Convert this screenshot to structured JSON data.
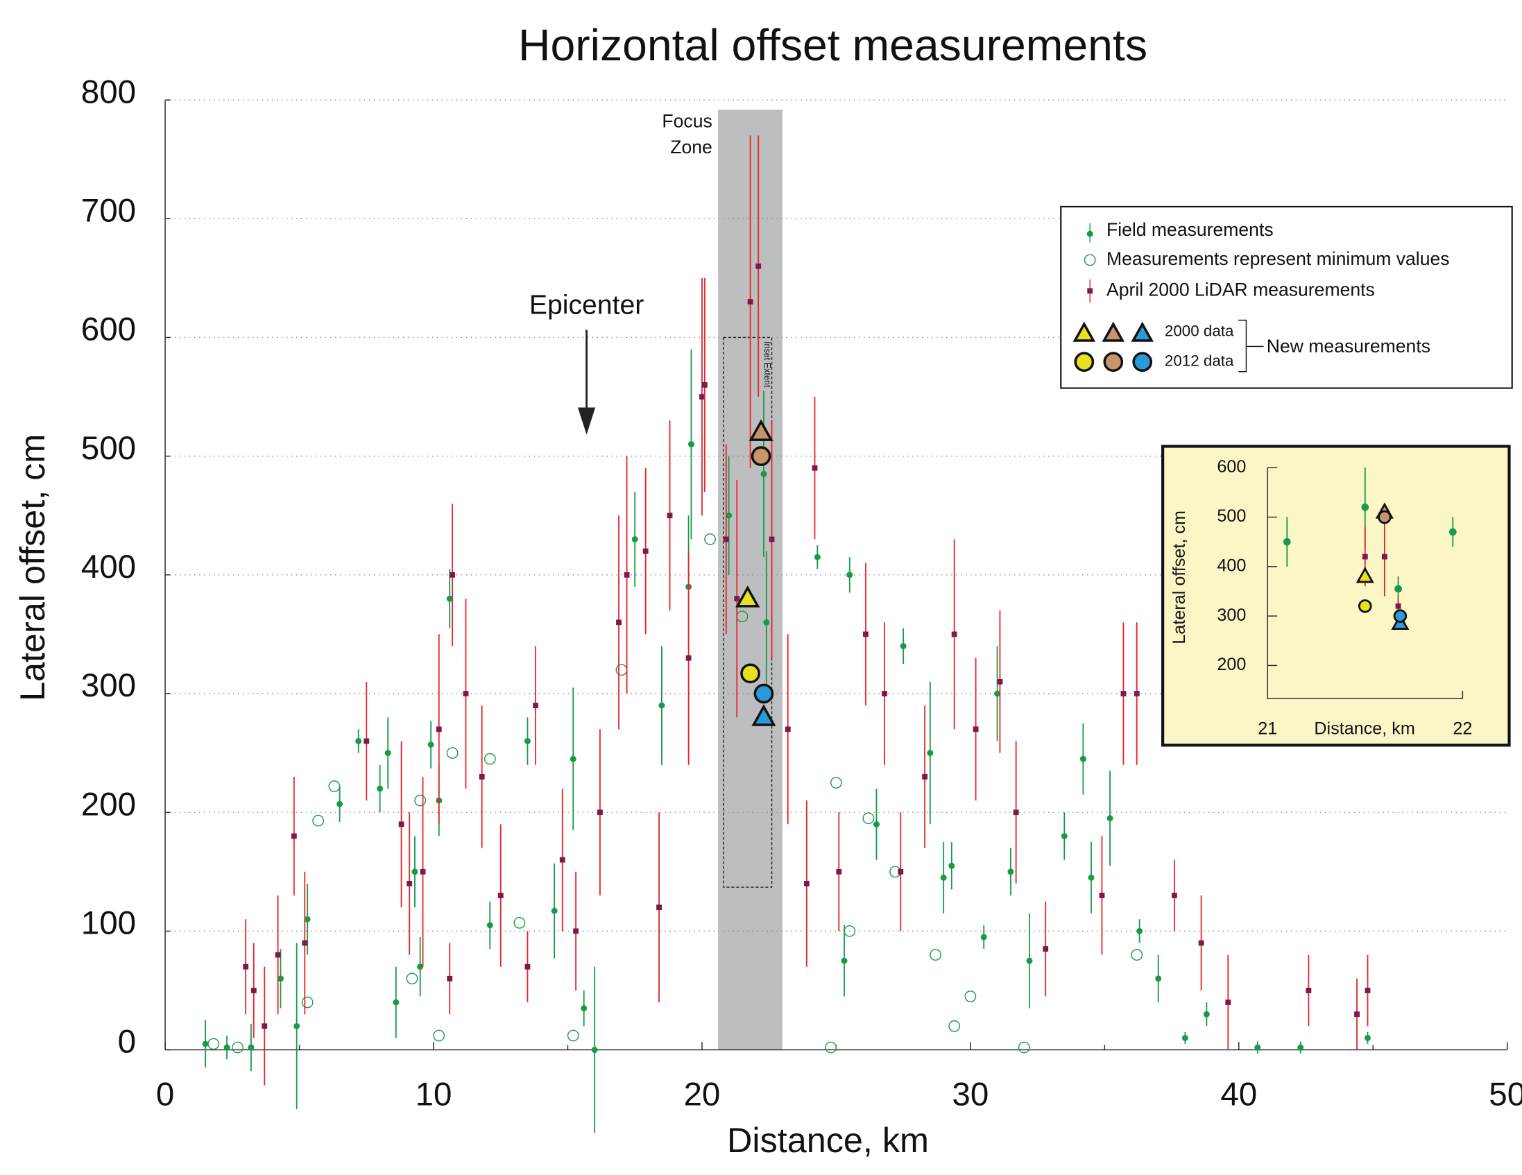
{
  "chart_data": {
    "type": "scatter",
    "title": "Horizontal offset measurements",
    "x_label": "Distance, km",
    "y_label": "Lateral offset, cm",
    "xlim": [
      0,
      50
    ],
    "xticks": [
      0,
      10,
      20,
      30,
      40,
      50
    ],
    "ylim": [
      0,
      800
    ],
    "yticks": [
      0,
      100,
      200,
      300,
      400,
      500,
      600,
      700,
      800
    ],
    "grid": true,
    "focus_zone": {
      "label": "Focus Zone",
      "x": [
        20.6,
        23.0
      ]
    },
    "inset_extent": {
      "label": "Inset Extent",
      "x": [
        20.8,
        22.6
      ],
      "y": [
        137,
        600
      ]
    },
    "epicenter": {
      "label": "Epicenter",
      "x": 15.7
    },
    "series": [
      {
        "name": "Field measurements",
        "marker": "dot",
        "color": "#1a9a48",
        "error_color": "#1a9a48",
        "x": [
          1.5,
          2.3,
          3.2,
          4.3,
          4.9,
          5.3,
          6.5,
          7.2,
          8,
          8.3,
          8.6,
          9.3,
          9.5,
          9.9,
          10.2,
          10.6,
          12.1,
          13.5,
          14.5,
          15.2,
          15.6,
          16,
          17.5,
          18.5,
          19.5,
          19.6,
          21,
          22.3,
          22.4,
          24.3,
          25.3,
          25.5,
          26.5,
          27.5,
          28.5,
          29,
          29.3,
          30.5,
          31,
          31.5,
          32.2,
          33.5,
          34.2,
          34.5,
          35.2,
          36.3,
          37,
          38,
          38.8,
          40.7,
          42.3,
          44.8
        ],
        "values": [
          5,
          2,
          2,
          60,
          20,
          110,
          207,
          260,
          220,
          250,
          40,
          150,
          70,
          257,
          210,
          380,
          105,
          260,
          117,
          245,
          35,
          0,
          430,
          290,
          390,
          510,
          450,
          485,
          360,
          415,
          75,
          400,
          190,
          340,
          250,
          145,
          155,
          95,
          300,
          150,
          75,
          180,
          245,
          145,
          195,
          100,
          60,
          10,
          30,
          2,
          2,
          10
        ],
        "errors": [
          20,
          10,
          20,
          25,
          70,
          30,
          15,
          10,
          20,
          30,
          30,
          30,
          25,
          20,
          30,
          25,
          20,
          20,
          40,
          60,
          15,
          70,
          40,
          50,
          60,
          80,
          50,
          70,
          60,
          10,
          30,
          15,
          30,
          15,
          60,
          30,
          20,
          10,
          40,
          20,
          40,
          20,
          30,
          30,
          40,
          10,
          20,
          5,
          10,
          5,
          5,
          5
        ]
      },
      {
        "name": "Measurements  represent minimum values",
        "marker": "open",
        "color": "#1a9a48",
        "x": [
          1.8,
          2.7,
          5.3,
          5.7,
          6.3,
          9.2,
          9.5,
          10.2,
          10.7,
          12.1,
          13.2,
          15.2,
          17,
          20.3,
          21.5,
          24.8,
          25,
          25.5,
          26.2,
          27.2,
          28.7,
          29.4,
          30,
          32,
          36.2
        ],
        "values": [
          5,
          2,
          40,
          193,
          222,
          60,
          210,
          12,
          250,
          245,
          107,
          12,
          320,
          430,
          365,
          2,
          225,
          100,
          195,
          150,
          80,
          20,
          45,
          2,
          80
        ]
      },
      {
        "name": "April 2000 LiDAR measurements",
        "marker": "square",
        "color": "#7b1a52",
        "error_color": "#e8242a",
        "x": [
          3,
          3.3,
          3.7,
          4.2,
          4.8,
          5.2,
          7.5,
          8.8,
          9.1,
          9.6,
          10.2,
          10.6,
          10.7,
          11.2,
          11.8,
          12.5,
          13.5,
          13.8,
          14.8,
          15.3,
          16.2,
          16.9,
          17.2,
          17.9,
          18.4,
          18.8,
          19.5,
          20,
          20.1,
          20.9,
          21.3,
          21.8,
          22.1,
          22.6,
          23.2,
          23.9,
          24.2,
          25.1,
          26.1,
          26.8,
          27.4,
          28.3,
          29.4,
          30.2,
          31.1,
          31.7,
          32.8,
          34.9,
          35.7,
          36.2,
          37.6,
          38.6,
          39.6,
          42.6,
          44.4,
          44.8
        ],
        "values": [
          70,
          50,
          20,
          80,
          180,
          90,
          260,
          190,
          140,
          150,
          270,
          60,
          400,
          300,
          230,
          130,
          70,
          290,
          160,
          100,
          200,
          360,
          400,
          420,
          120,
          450,
          330,
          550,
          560,
          430,
          380,
          630,
          660,
          430,
          270,
          140,
          490,
          150,
          350,
          300,
          150,
          230,
          350,
          270,
          310,
          200,
          85,
          130,
          300,
          300,
          130,
          90,
          40,
          50,
          30,
          50
        ],
        "errors": [
          40,
          40,
          50,
          50,
          50,
          60,
          50,
          70,
          60,
          80,
          80,
          30,
          60,
          80,
          60,
          60,
          30,
          50,
          60,
          50,
          70,
          90,
          100,
          70,
          80,
          80,
          90,
          100,
          90,
          80,
          100,
          140,
          110,
          100,
          80,
          70,
          60,
          50,
          60,
          60,
          50,
          60,
          80,
          60,
          60,
          60,
          40,
          50,
          60,
          60,
          30,
          40,
          40,
          30,
          30,
          30
        ]
      }
    ],
    "new_measurements": {
      "label": "New measurements",
      "groups": [
        {
          "name": "2000 data",
          "marker": "triangle",
          "colors": [
            "#e8e020",
            "#c8956a",
            "#2a9ad8"
          ],
          "x": [
            21.7,
            22.2,
            22.3
          ],
          "values": [
            380,
            520,
            280
          ]
        },
        {
          "name": "2012 data",
          "marker": "circle",
          "colors": [
            "#e8e020",
            "#c8956a",
            "#2a9ad8"
          ],
          "x": [
            21.8,
            22.2,
            22.3
          ],
          "values": [
            317,
            500,
            300
          ]
        }
      ]
    },
    "inset": {
      "x_label": "Distance, km",
      "y_label": "Lateral offset, cm",
      "xlim": [
        21,
        22
      ],
      "xticks": [
        21,
        22
      ],
      "ylim": [
        133,
        600
      ],
      "yticks": [
        200,
        300,
        400,
        500,
        600
      ],
      "field": {
        "x": [
          21.1,
          21.5,
          21.95,
          21.67
        ],
        "values": [
          450,
          520,
          470,
          355
        ],
        "errors": [
          50,
          80,
          30,
          25
        ]
      },
      "lidar": {
        "x": [
          21.5,
          21.6,
          21.67
        ],
        "values": [
          420,
          420,
          320
        ],
        "errors": [
          60,
          80,
          20
        ]
      },
      "triangles": {
        "colors": [
          "#e8e020",
          "#c8956a",
          "#2a9ad8"
        ],
        "x": [
          21.5,
          21.6,
          21.68
        ],
        "values": [
          380,
          510,
          285
        ]
      },
      "circles": {
        "colors": [
          "#e8e020",
          "#c8956a",
          "#2a9ad8"
        ],
        "x": [
          21.5,
          21.6,
          21.68
        ],
        "values": [
          320,
          500,
          300
        ]
      }
    }
  }
}
